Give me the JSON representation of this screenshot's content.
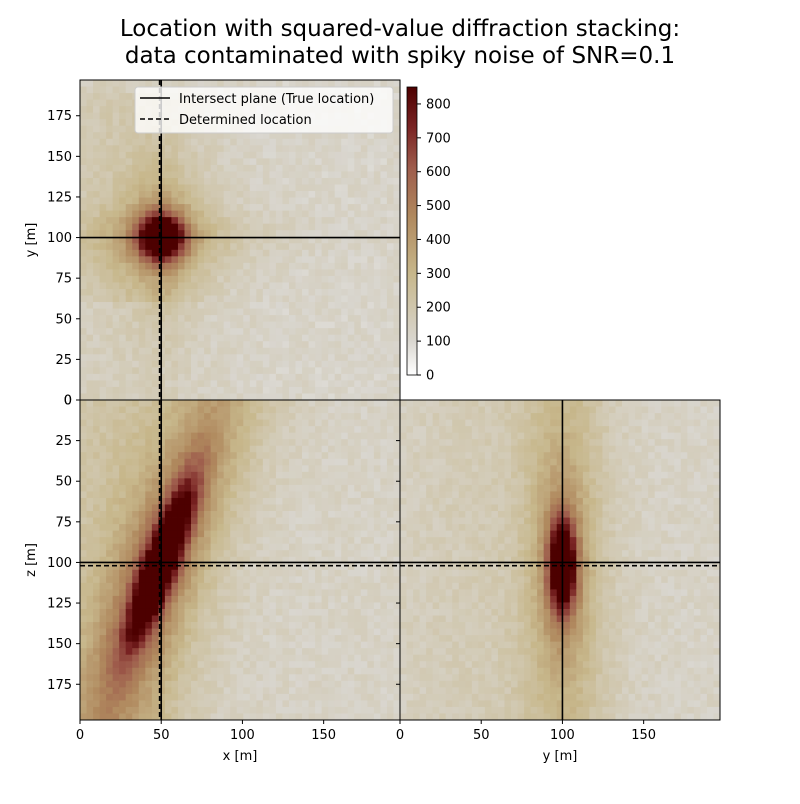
{
  "chart_data": {
    "type": "heatmap",
    "title_line1": "Location with squared-value diffraction stacking:",
    "title_line2": "data contaminated with spiky noise of SNR=0.1",
    "legend": {
      "solid_label": "Intersect plane (True location)",
      "dashed_label": "Determined location",
      "placement": "upper-right"
    },
    "colorbar": {
      "range": [
        0,
        850
      ],
      "ticks": [
        "0",
        "100",
        "200",
        "300",
        "400",
        "500",
        "600",
        "700",
        "800"
      ],
      "colormap": [
        "#ffffff",
        "#d9d6cf",
        "#c7b78b",
        "#b0895e",
        "#9e5c4c",
        "#7a2424",
        "#4d0000"
      ]
    },
    "true_location": {
      "x": 50,
      "y": 100,
      "z": 100
    },
    "determined_location": {
      "x": 49,
      "y": 100,
      "z": 102
    },
    "panels": {
      "xy": {
        "ylabel": "y [m]",
        "xrange": [
          0,
          197
        ],
        "yrange": [
          0,
          197
        ],
        "yticks": [
          "0",
          "25",
          "50",
          "75",
          "100",
          "125",
          "150",
          "175"
        ]
      },
      "xz": {
        "xlabel": "x [m]",
        "ylabel": "z [m]",
        "xrange": [
          0,
          197
        ],
        "zrange": [
          0,
          197
        ],
        "xticks": [
          "0",
          "50",
          "100",
          "150"
        ],
        "yticks": [
          "0",
          "25",
          "50",
          "75",
          "100",
          "125",
          "150",
          "175"
        ]
      },
      "yz": {
        "xlabel": "y [m]",
        "xrange": [
          0,
          197
        ],
        "zrange": [
          0,
          197
        ],
        "xticks": [
          "0",
          "50",
          "100",
          "150"
        ]
      }
    }
  }
}
